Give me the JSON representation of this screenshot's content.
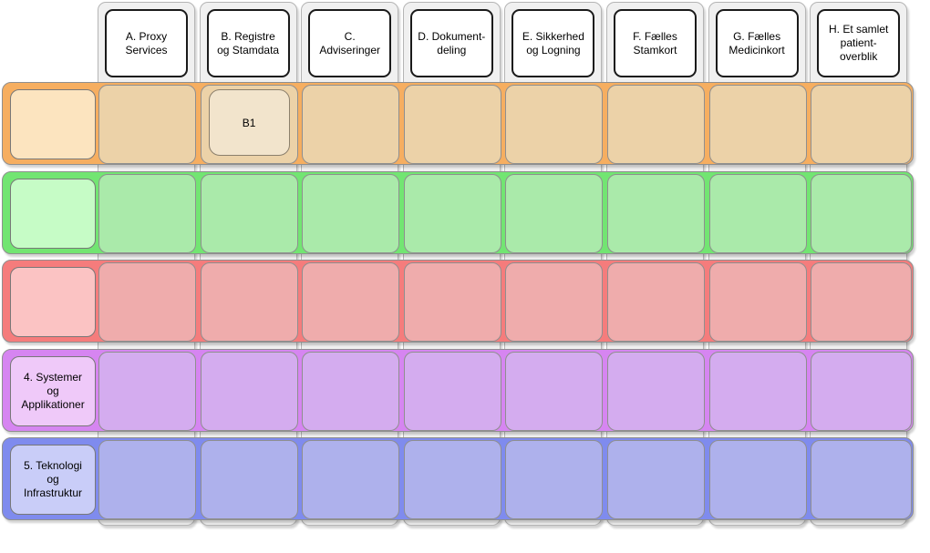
{
  "diagram": {
    "title": "capability-matrix",
    "columns": [
      {
        "id": "A",
        "label": "A. Proxy\nServices"
      },
      {
        "id": "B",
        "label": "B. Registre\nog Stamdata"
      },
      {
        "id": "C",
        "label": "C.\nAdviseringer"
      },
      {
        "id": "D",
        "label": "D. Dokument-\ndeling"
      },
      {
        "id": "E",
        "label": "E. Sikkerhed\nog Logning"
      },
      {
        "id": "F",
        "label": "F. Fælles\nStamkort"
      },
      {
        "id": "G",
        "label": "G. Fælles\nMedicinkort"
      },
      {
        "id": "H",
        "label": "H. Et samlet\npatient-\noverblik"
      }
    ],
    "rows": [
      {
        "id": "1",
        "label": "",
        "colors": {
          "bright": "#f6ae60",
          "cell": "#ecd2a8",
          "inner": "#fce4bf"
        }
      },
      {
        "id": "2",
        "label": "",
        "colors": {
          "bright": "#72e572",
          "cell": "#aaeaaa",
          "inner": "#c6fcc6"
        }
      },
      {
        "id": "3",
        "label": "",
        "colors": {
          "bright": "#f57c7c",
          "cell": "#efacac",
          "inner": "#fbc3c3"
        }
      },
      {
        "id": "4",
        "label": "4. Systemer\nog\nApplikationer",
        "colors": {
          "bright": "#d685f1",
          "cell": "#d4acef",
          "inner": "#efc9f9"
        }
      },
      {
        "id": "5",
        "label": "5. Teknologi\nog\nInfrastruktur",
        "colors": {
          "bright": "#7f8bee",
          "cell": "#aeb1ec",
          "inner": "#c9cdf8"
        }
      }
    ],
    "cell_boxes": [
      {
        "label": "B1",
        "row": 0,
        "column": 1,
        "fill": "#f2e4cc"
      }
    ]
  }
}
